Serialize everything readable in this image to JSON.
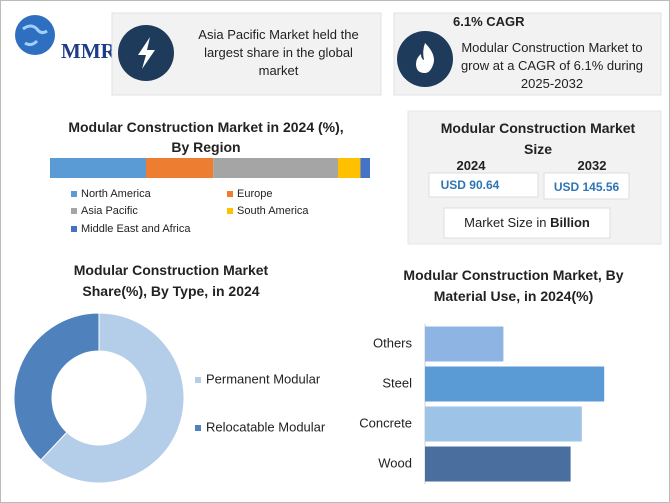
{
  "logo": "MMR",
  "highlights": [
    {
      "text": "Asia Pacific Market held the largest share in the global market"
    },
    {
      "title": "6.1% CAGR",
      "text": "Modular Construction Market to grow at a CAGR of 6.1% during 2025-2032"
    }
  ],
  "market_size": {
    "title": "Modular Construction Market Size",
    "years": [
      {
        "year": "2024",
        "value": "USD 90.64"
      },
      {
        "year": "2032",
        "value": "USD 145.56"
      }
    ],
    "note": "Market Size in",
    "note_unit": "Billion"
  },
  "chart_data": [
    {
      "type": "stacked_bar",
      "title": "Modular Construction Market in 2024 (%), By Region",
      "series": [
        {
          "name": "North America",
          "color": "#5b9bd5",
          "values": [
            30
          ]
        },
        {
          "name": "Europe",
          "color": "#ed7d31",
          "values": [
            21
          ]
        },
        {
          "name": "Asia Pacific",
          "color": "#a5a5a5",
          "values": [
            39
          ]
        },
        {
          "name": "South America",
          "color": "#ffc000",
          "values": [
            7
          ]
        },
        {
          "name": "Middle East and Africa",
          "color": "#4472c4",
          "values": [
            3
          ]
        }
      ]
    },
    {
      "type": "donut",
      "title": "Modular Construction Market Share(%), By Type, in 2024",
      "categories": [
        "Permanent Modular",
        "Relocatable Modular"
      ],
      "values": [
        62,
        38
      ],
      "colors": [
        "#b4cde9",
        "#4f81bd"
      ]
    },
    {
      "type": "bar",
      "orientation": "horizontal",
      "title": "Modular Construction Market, By Material Use, in 2024(%)",
      "categories": [
        "Others",
        "Steel",
        "Concrete",
        "Wood"
      ],
      "values": [
        14,
        32,
        28,
        26
      ],
      "colors": [
        "#8db4e2",
        "#5b9bd5",
        "#9dc3e6",
        "#4a6f9e"
      ]
    }
  ]
}
